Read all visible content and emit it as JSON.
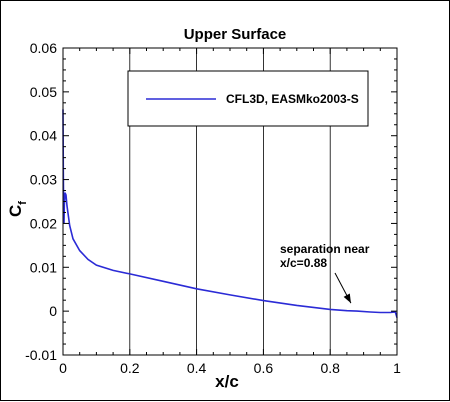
{
  "chart_data": {
    "type": "line",
    "title": "Upper Surface",
    "xlabel": "x/c",
    "ylabel": "C",
    "ylabel_subscript": "f",
    "xlim": [
      0,
      1
    ],
    "ylim": [
      -0.01,
      0.06
    ],
    "xticks": [
      "0",
      "0.2",
      "0.4",
      "0.6",
      "0.8",
      "1"
    ],
    "yticks": [
      "-0.01",
      "0",
      "0.01",
      "0.02",
      "0.03",
      "0.04",
      "0.05",
      "0.06"
    ],
    "grid": "vertical",
    "legend_position": "top-right",
    "series": [
      {
        "name": "CFL3D, EASMko2003-S",
        "color": "#2b2bd6",
        "x": [
          0.0,
          0.001,
          0.002,
          0.003,
          0.004,
          0.006,
          0.009,
          0.012,
          0.02,
          0.03,
          0.05,
          0.075,
          0.1,
          0.15,
          0.2,
          0.3,
          0.4,
          0.5,
          0.6,
          0.7,
          0.8,
          0.85,
          0.88,
          0.92,
          0.95,
          0.98,
          0.995,
          1.0
        ],
        "y": [
          0.046,
          0.032,
          0.022,
          0.02,
          0.024,
          0.027,
          0.0265,
          0.024,
          0.0195,
          0.0165,
          0.0138,
          0.0118,
          0.0105,
          0.0093,
          0.0085,
          0.0068,
          0.0051,
          0.0037,
          0.0024,
          0.0013,
          0.0004,
          0.0001,
          0.0,
          -0.0002,
          -0.0003,
          -0.0003,
          -0.0002,
          -0.0015
        ]
      }
    ],
    "annotations": [
      {
        "text_lines": [
          "separation near",
          "x/c=0.88"
        ],
        "arrow_to": [
          0.88,
          0.0
        ]
      }
    ]
  }
}
